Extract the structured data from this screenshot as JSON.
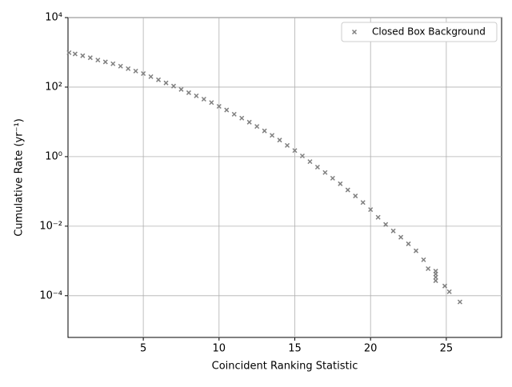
{
  "chart_data": {
    "type": "scatter",
    "xlabel": "Coincident Ranking Statistic",
    "ylabel": "Cumulative Rate (yr⁻¹)",
    "xlim": [
      0.03,
      28.65
    ],
    "ylim": [
      6.3e-06,
      10000
    ],
    "yscale": "log",
    "xticks": [
      5,
      10,
      15,
      20,
      25
    ],
    "yticks": [
      {
        "value": 0.0001,
        "label": "10⁻⁴"
      },
      {
        "value": 0.01,
        "label": "10⁻²"
      },
      {
        "value": 1,
        "label": "10⁰"
      },
      {
        "value": 100,
        "label": "10²"
      },
      {
        "value": 10000,
        "label": "10⁴"
      }
    ],
    "grid": true,
    "legend": "upper right",
    "series": [
      {
        "name": "Closed Box Background",
        "color": "#808080",
        "marker": "x",
        "x": [
          0.1,
          0.5,
          1,
          1.5,
          2,
          2.5,
          3,
          3.5,
          4,
          4.5,
          5,
          5.5,
          6,
          6.5,
          7,
          7.5,
          8,
          8.5,
          9,
          9.5,
          10,
          10.5,
          11,
          11.5,
          12,
          12.5,
          13,
          13.5,
          14,
          14.5,
          15,
          15.5,
          16,
          16.5,
          17,
          17.5,
          18,
          18.5,
          19,
          19.5,
          20,
          20.5,
          21,
          21.5,
          22,
          22.5,
          23,
          23.5,
          23.8,
          24.3,
          24.3,
          24.3,
          24.3,
          24.9,
          25.2,
          25.9
        ],
        "values": [
          980,
          900,
          800,
          700,
          600,
          530,
          470,
          400,
          340,
          290,
          245,
          200,
          162,
          132,
          107,
          86,
          69,
          56,
          45,
          36,
          28,
          22,
          16.6,
          12.8,
          9.8,
          7.4,
          5.5,
          4.1,
          3.0,
          2.1,
          1.5,
          1.05,
          0.72,
          0.5,
          0.35,
          0.24,
          0.166,
          0.11,
          0.074,
          0.048,
          0.03,
          0.018,
          0.0112,
          0.0073,
          0.0048,
          0.0031,
          0.00195,
          0.00108,
          0.0006,
          0.00051,
          0.00042,
          0.00034,
          0.00027,
          0.00019,
          0.00013,
          6.6e-05
        ]
      }
    ]
  }
}
